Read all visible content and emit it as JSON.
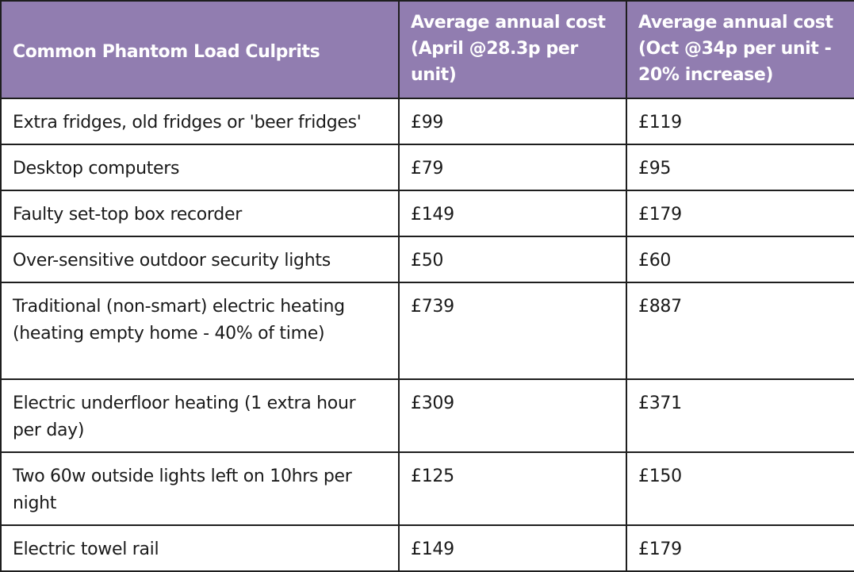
{
  "table": {
    "header_color": "#917db0",
    "headers": [
      "Common Phantom Load Culprits",
      "Average annual cost (April @28.3p per unit)",
      "Average annual cost (Oct @34p per unit  -  20% increase)"
    ],
    "rows": [
      {
        "item": "Extra fridges, old fridges or 'beer fridges'",
        "april": "£99",
        "oct": "£119"
      },
      {
        "item": "Desktop computers",
        "april": "£79",
        "oct": "£95"
      },
      {
        "item": "Faulty set-top box recorder",
        "april": "£149",
        "oct": "£179"
      },
      {
        "item": "Over-sensitive outdoor security lights",
        "april": "£50",
        "oct": "£60"
      },
      {
        "item": "Traditional (non-smart) electric heating (heating empty home - 40% of time)",
        "april": "£739",
        "oct": "£887"
      },
      {
        "item": "Electric underfloor heating (1 extra hour per day)",
        "april": "£309",
        "oct": "£371"
      },
      {
        "item": "Two 60w outside lights left on 10hrs per night",
        "april": "£125",
        "oct": "£150"
      },
      {
        "item": "Electric towel rail",
        "april": "£149",
        "oct": "£179"
      }
    ]
  }
}
